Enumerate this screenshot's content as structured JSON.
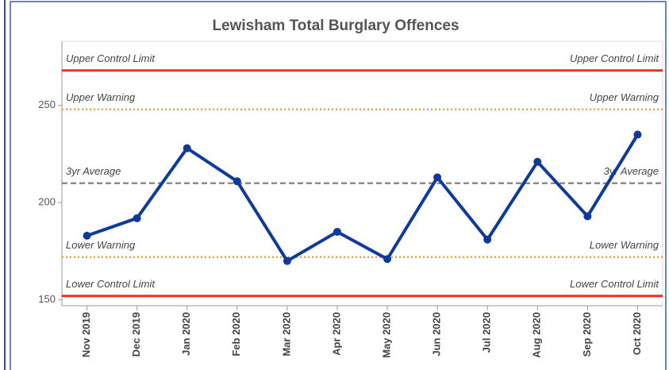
{
  "chart_data": {
    "type": "line",
    "title": "Lewisham Total Burglary Offences",
    "categories": [
      "Nov 2019",
      "Dec 2019",
      "Jan 2020",
      "Feb 2020",
      "Mar 2020",
      "Apr 2020",
      "May 2020",
      "Jun 2020",
      "Jul 2020",
      "Aug 2020",
      "Sep 2020",
      "Oct 2020"
    ],
    "values": [
      183,
      192,
      228,
      211,
      170,
      185,
      171,
      213,
      181,
      221,
      193,
      235
    ],
    "color": "#0d3a9c",
    "ylim": [
      147,
      283
    ],
    "yticks": [
      150,
      200,
      250
    ],
    "reference_lines": [
      {
        "label": "Upper Control Limit",
        "value": 268,
        "color": "#e8341c",
        "style": "solid"
      },
      {
        "label": "Upper Warning",
        "value": 248,
        "color": "#f0a23c",
        "style": "dotted"
      },
      {
        "label": "3yr Average",
        "value": 210,
        "color": "#8c8c8c",
        "style": "dashed"
      },
      {
        "label": "Lower Warning",
        "value": 172,
        "color": "#f0a23c",
        "style": "dotted"
      },
      {
        "label": "Lower Control Limit",
        "value": 152,
        "color": "#e8341c",
        "style": "solid"
      }
    ]
  }
}
